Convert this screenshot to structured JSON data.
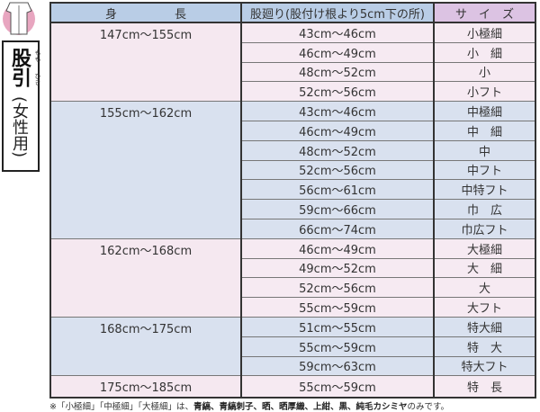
{
  "title": {
    "main": "股引",
    "ruby1": "もも",
    "ruby2": "ひき",
    "sub": "(女性用)"
  },
  "header": {
    "height_a": "身",
    "height_b": "長",
    "crotch": "股廻り(股付け根より5cm下の所)",
    "size": "サ　イ　ズ"
  },
  "groups": [
    {
      "height": "147cm〜155cm",
      "rows": [
        [
          "43cm〜46cm",
          "小極細"
        ],
        [
          "46cm〜49cm",
          "小　細"
        ],
        [
          "48cm〜52cm",
          "小"
        ],
        [
          "52cm〜56cm",
          "小フト"
        ]
      ]
    },
    {
      "height": "155cm〜162cm",
      "rows": [
        [
          "43cm〜46cm",
          "中極細"
        ],
        [
          "46cm〜49cm",
          "中　細"
        ],
        [
          "48cm〜52cm",
          "中"
        ],
        [
          "52cm〜56cm",
          "中フト"
        ],
        [
          "56cm〜61cm",
          "中特フト"
        ],
        [
          "59cm〜66cm",
          "巾　広"
        ],
        [
          "66cm〜74cm",
          "巾広フト"
        ]
      ]
    },
    {
      "height": "162cm〜168cm",
      "rows": [
        [
          "46cm〜49cm",
          "大極細"
        ],
        [
          "49cm〜52cm",
          "大　細"
        ],
        [
          "52cm〜56cm",
          "大"
        ],
        [
          "55cm〜59cm",
          "大フト"
        ]
      ]
    },
    {
      "height": "168cm〜175cm",
      "rows": [
        [
          "51cm〜55cm",
          "特大細"
        ],
        [
          "55cm〜59cm",
          "特　大"
        ],
        [
          "59cm〜63cm",
          "特大フト"
        ]
      ]
    },
    {
      "height": "175cm〜185cm",
      "rows": [
        [
          "55cm〜59cm",
          "特　長"
        ]
      ]
    }
  ],
  "note": {
    "prefix": "※「小極細」「中極細」「大極細」は、",
    "materials": "青縞、青縞刺子、晒、晒厚織、上紺、黒、純毛カシミヤ",
    "suffix": "のみです。"
  }
}
